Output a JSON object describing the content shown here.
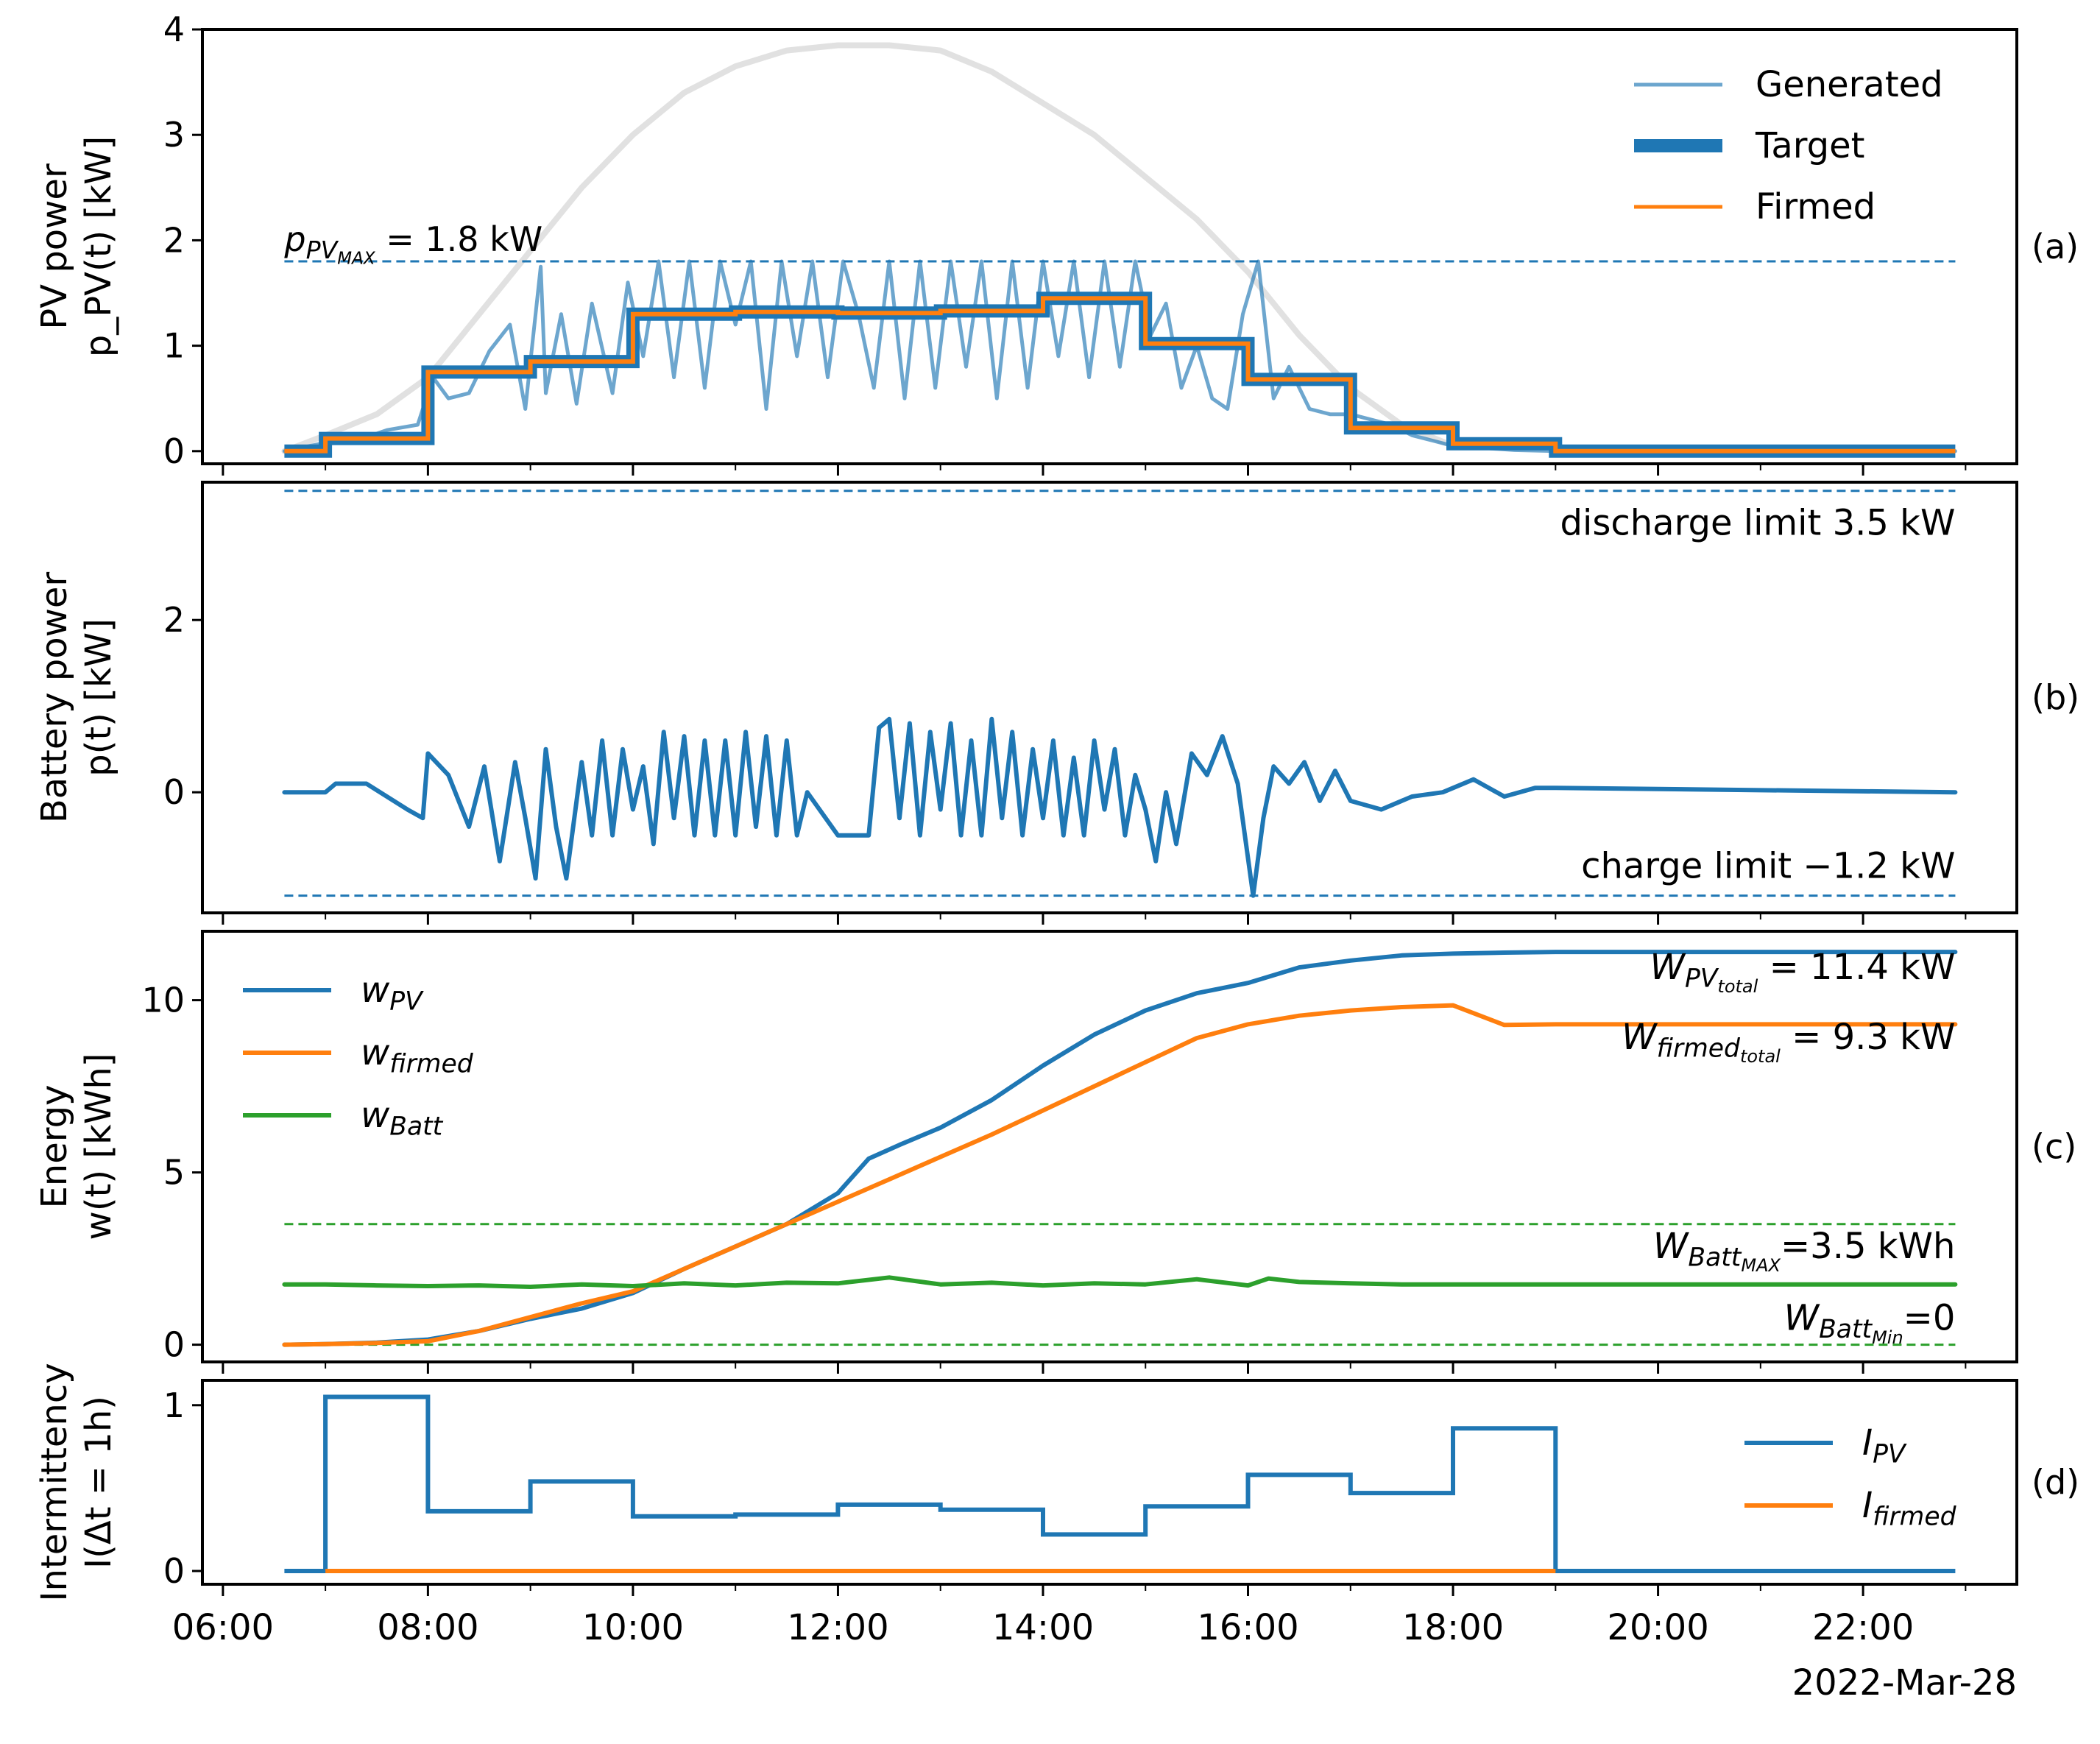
{
  "figure": {
    "date_label": "2022-Mar-28"
  },
  "colors": {
    "blue": "#1f77b4",
    "blue_light": "#1f77b4",
    "orange": "#ff7f0e",
    "green": "#2ca02c",
    "gray": "#d9d9d9"
  },
  "x_axis": {
    "range_hours": [
      5.8,
      23.5
    ],
    "ticks": [
      6,
      8,
      10,
      12,
      14,
      16,
      18,
      20,
      22
    ],
    "tick_labels": [
      "06:00",
      "08:00",
      "10:00",
      "12:00",
      "14:00",
      "16:00",
      "18:00",
      "20:00",
      "22:00"
    ],
    "minor_ticks": [
      7,
      9,
      11,
      13,
      15,
      17,
      19,
      21,
      23
    ]
  },
  "chart_data": [
    {
      "id": "a",
      "type": "line",
      "panel_label": "(a)",
      "ylabel": "PV power",
      "ylabel2": "p_PV(t) [kW]",
      "ylim": [
        -0.12,
        4.0
      ],
      "yticks": [
        0,
        1,
        2,
        3,
        4
      ],
      "ytick_labels": [
        "0",
        "1",
        "2",
        "3",
        "4"
      ],
      "hline": {
        "y": 1.8,
        "label": "= 1.8 kW",
        "label_main": "p",
        "label_sub": "PV",
        "label_subsub": "MAX"
      },
      "legend": [
        "Generated",
        "Target",
        "Firmed"
      ],
      "clear_sky_envelope_kW": {
        "x": [
          6.6,
          7.0,
          7.5,
          8.0,
          8.5,
          9.0,
          9.5,
          10.0,
          10.5,
          11.0,
          11.5,
          12.0,
          12.5,
          13.0,
          13.5,
          14.0,
          14.5,
          15.0,
          15.5,
          16.0,
          16.5,
          17.0,
          17.5,
          18.0
        ],
        "y": [
          0.0,
          0.15,
          0.35,
          0.7,
          1.3,
          1.9,
          2.5,
          3.0,
          3.4,
          3.65,
          3.8,
          3.85,
          3.85,
          3.8,
          3.6,
          3.3,
          3.0,
          2.6,
          2.2,
          1.7,
          1.1,
          0.6,
          0.25,
          0.05
        ]
      },
      "target_step": {
        "edges": [
          6.6,
          7.0,
          8.0,
          9.0,
          10.0,
          11.0,
          12.0,
          13.0,
          14.0,
          15.0,
          16.0,
          17.0,
          18.0,
          19.0,
          22.9
        ],
        "values": [
          0.0,
          0.12,
          0.75,
          0.85,
          1.3,
          1.32,
          1.31,
          1.33,
          1.45,
          1.02,
          0.68,
          0.22,
          0.07,
          0.0
        ]
      },
      "series": [
        {
          "name": "Generated",
          "style": "thin",
          "x": [
            6.6,
            7.0,
            7.3,
            7.6,
            7.9,
            8.05,
            8.2,
            8.4,
            8.6,
            8.8,
            8.95,
            9.1,
            9.15,
            9.3,
            9.45,
            9.6,
            9.8,
            9.95,
            10.1,
            10.25,
            10.4,
            10.55,
            10.7,
            10.85,
            11.0,
            11.15,
            11.3,
            11.45,
            11.6,
            11.75,
            11.9,
            12.05,
            12.2,
            12.35,
            12.5,
            12.65,
            12.8,
            12.95,
            13.1,
            13.25,
            13.4,
            13.55,
            13.7,
            13.85,
            14.0,
            14.15,
            14.3,
            14.45,
            14.6,
            14.75,
            14.9,
            15.05,
            15.2,
            15.35,
            15.5,
            15.65,
            15.8,
            15.95,
            16.1,
            16.25,
            16.4,
            16.6,
            16.8,
            17.0,
            17.2,
            17.4,
            17.6,
            17.8,
            18.0,
            18.3,
            18.6,
            19.0,
            22.9
          ],
          "y": [
            0.0,
            0.08,
            0.1,
            0.2,
            0.25,
            0.7,
            0.5,
            0.55,
            0.95,
            1.2,
            0.4,
            1.75,
            0.55,
            1.3,
            0.45,
            1.4,
            0.55,
            1.6,
            0.9,
            1.8,
            0.7,
            1.8,
            0.6,
            1.8,
            1.2,
            1.8,
            0.4,
            1.8,
            0.9,
            1.8,
            0.7,
            1.8,
            1.3,
            0.6,
            1.8,
            0.5,
            1.8,
            0.6,
            1.8,
            0.8,
            1.8,
            0.5,
            1.8,
            0.6,
            1.8,
            0.9,
            1.8,
            0.7,
            1.8,
            0.8,
            1.8,
            1.1,
            1.4,
            0.6,
            1.0,
            0.5,
            0.4,
            1.3,
            1.8,
            0.5,
            0.8,
            0.4,
            0.35,
            0.35,
            0.3,
            0.25,
            0.15,
            0.1,
            0.05,
            0.03,
            0.01,
            0.0,
            0.0
          ]
        },
        {
          "name": "Target",
          "style": "thick"
        },
        {
          "name": "Firmed",
          "style": "medium"
        }
      ]
    },
    {
      "id": "b",
      "type": "line",
      "panel_label": "(b)",
      "ylabel": "Battery power",
      "ylabel2": "p(t) [kW]",
      "ylim": [
        -1.4,
        3.6
      ],
      "yticks": [
        0,
        2
      ],
      "ytick_labels": [
        "0",
        "2"
      ],
      "discharge_limit": {
        "y": 3.5,
        "label": "discharge limit 3.5 kW"
      },
      "charge_limit": {
        "y": -1.2,
        "label": "charge limit −1.2 kW"
      },
      "series": [
        {
          "name": "Battery",
          "x": [
            6.6,
            7.0,
            7.1,
            7.4,
            7.8,
            7.95,
            8.0,
            8.2,
            8.4,
            8.55,
            8.7,
            8.85,
            8.95,
            9.05,
            9.15,
            9.25,
            9.35,
            9.5,
            9.6,
            9.7,
            9.8,
            9.9,
            10.0,
            10.1,
            10.2,
            10.3,
            10.4,
            10.5,
            10.6,
            10.7,
            10.8,
            10.9,
            11.0,
            11.1,
            11.2,
            11.3,
            11.4,
            11.5,
            11.6,
            11.7,
            12.0,
            12.3,
            12.4,
            12.5,
            12.6,
            12.7,
            12.8,
            12.9,
            13.0,
            13.1,
            13.2,
            13.3,
            13.4,
            13.5,
            13.6,
            13.7,
            13.8,
            13.9,
            14.0,
            14.1,
            14.2,
            14.3,
            14.4,
            14.5,
            14.6,
            14.7,
            14.8,
            14.9,
            15.0,
            15.1,
            15.2,
            15.3,
            15.45,
            15.6,
            15.75,
            15.9,
            16.05,
            16.15,
            16.25,
            16.4,
            16.55,
            16.7,
            16.85,
            17.0,
            17.3,
            17.6,
            17.9,
            18.2,
            18.5,
            18.8,
            19.0,
            22.9
          ],
          "y": [
            0.0,
            0.0,
            0.1,
            0.1,
            -0.2,
            -0.3,
            0.45,
            0.2,
            -0.4,
            0.3,
            -0.8,
            0.35,
            -0.3,
            -1.0,
            0.5,
            -0.4,
            -1.0,
            0.35,
            -0.5,
            0.6,
            -0.5,
            0.5,
            -0.2,
            0.3,
            -0.6,
            0.7,
            -0.3,
            0.65,
            -0.5,
            0.6,
            -0.5,
            0.6,
            -0.5,
            0.7,
            -0.4,
            0.65,
            -0.5,
            0.6,
            -0.5,
            0.0,
            -0.5,
            -0.5,
            0.75,
            0.85,
            -0.3,
            0.8,
            -0.5,
            0.7,
            -0.2,
            0.8,
            -0.5,
            0.6,
            -0.5,
            0.85,
            -0.3,
            0.7,
            -0.5,
            0.5,
            -0.3,
            0.6,
            -0.5,
            0.4,
            -0.5,
            0.6,
            -0.2,
            0.5,
            -0.5,
            0.2,
            -0.2,
            -0.8,
            0.0,
            -0.6,
            0.45,
            0.2,
            0.65,
            0.1,
            -1.2,
            -0.3,
            0.3,
            0.1,
            0.35,
            -0.1,
            0.25,
            -0.1,
            -0.2,
            -0.05,
            0.0,
            0.15,
            -0.05,
            0.05,
            0.05,
            0.0
          ]
        }
      ]
    },
    {
      "id": "c",
      "type": "line",
      "panel_label": "(c)",
      "ylabel": "Energy",
      "ylabel2": "w(t) [kWh]",
      "ylim": [
        -0.5,
        12.0
      ],
      "yticks": [
        0,
        5,
        10
      ],
      "ytick_labels": [
        "0",
        "5",
        "10"
      ],
      "batt_max": {
        "y": 3.5,
        "label_main": "W",
        "label_sub": "Batt",
        "label_subsub": "MAX",
        "label_rest": "=3.5 kWh"
      },
      "batt_min": {
        "y": 0.0,
        "label_main": "W",
        "label_sub": "Batt",
        "label_subsub": "Min",
        "label_rest": "=0"
      },
      "annot_pv_total": {
        "label_main": "W",
        "label_sub": "PV",
        "label_subsub": "total",
        "label_rest": "= 11.4 kW"
      },
      "annot_firmed_total": {
        "label_main": "W",
        "label_sub": "firmed",
        "label_subsub": "total",
        "label_rest": "= 9.3 kW"
      },
      "legend": [
        {
          "main": "w",
          "sub": "PV"
        },
        {
          "main": "w",
          "sub": "firmed"
        },
        {
          "main": "w",
          "sub": "Batt"
        }
      ],
      "series": [
        {
          "name": "w_PV",
          "x": [
            6.6,
            7.0,
            7.5,
            8.0,
            8.5,
            9.0,
            9.5,
            10.0,
            10.5,
            11.0,
            11.5,
            12.0,
            12.3,
            12.6,
            13.0,
            13.5,
            14.0,
            14.5,
            15.0,
            15.5,
            16.0,
            16.5,
            17.0,
            17.5,
            18.0,
            18.5,
            19.0,
            20.0,
            22.9
          ],
          "y": [
            0.0,
            0.02,
            0.06,
            0.15,
            0.4,
            0.75,
            1.05,
            1.5,
            2.2,
            2.85,
            3.5,
            4.4,
            5.4,
            5.8,
            6.3,
            7.1,
            8.1,
            9.0,
            9.7,
            10.2,
            10.5,
            10.95,
            11.15,
            11.3,
            11.35,
            11.38,
            11.4,
            11.4,
            11.4
          ]
        },
        {
          "name": "w_firmed",
          "x": [
            6.6,
            7.0,
            7.5,
            8.0,
            8.5,
            9.0,
            9.5,
            10.0,
            10.5,
            11.0,
            11.5,
            12.0,
            12.5,
            13.0,
            13.5,
            14.0,
            14.5,
            15.0,
            15.5,
            16.0,
            16.5,
            17.0,
            17.5,
            18.0,
            18.5,
            19.0,
            20.0,
            22.9
          ],
          "y": [
            0.0,
            0.02,
            0.05,
            0.1,
            0.4,
            0.8,
            1.2,
            1.55,
            2.2,
            2.85,
            3.5,
            4.15,
            4.8,
            5.45,
            6.1,
            6.8,
            7.5,
            8.2,
            8.9,
            9.3,
            9.55,
            9.7,
            9.8,
            9.85,
            9.28,
            9.3,
            9.3,
            9.3
          ]
        },
        {
          "name": "w_Batt",
          "x": [
            6.6,
            7.0,
            7.5,
            8.0,
            8.5,
            9.0,
            9.5,
            10.0,
            10.5,
            11.0,
            11.5,
            12.0,
            12.5,
            13.0,
            13.5,
            14.0,
            14.5,
            15.0,
            15.5,
            16.0,
            16.2,
            16.5,
            17.0,
            17.5,
            18.0,
            19.0,
            22.9
          ],
          "y": [
            1.75,
            1.75,
            1.72,
            1.7,
            1.72,
            1.68,
            1.75,
            1.7,
            1.78,
            1.72,
            1.8,
            1.78,
            1.95,
            1.75,
            1.8,
            1.72,
            1.78,
            1.75,
            1.9,
            1.72,
            1.92,
            1.82,
            1.78,
            1.75,
            1.75,
            1.75,
            1.75
          ]
        }
      ]
    },
    {
      "id": "d",
      "type": "line",
      "panel_label": "(d)",
      "ylabel": "Intermittency",
      "ylabel2": "I(Δt = 1h)",
      "ylim": [
        -0.08,
        1.15
      ],
      "yticks": [
        0,
        1
      ],
      "ytick_labels": [
        "0",
        "1"
      ],
      "legend": [
        {
          "main": "I",
          "sub": "PV"
        },
        {
          "main": "I",
          "sub": "firmed"
        }
      ],
      "series": [
        {
          "name": "I_PV",
          "edges": [
            6.6,
            7.0,
            8.0,
            9.0,
            10.0,
            11.0,
            12.0,
            13.0,
            14.0,
            15.0,
            16.0,
            17.0,
            18.0,
            19.0,
            22.9
          ],
          "values": [
            0.0,
            1.05,
            0.36,
            0.54,
            0.33,
            0.34,
            0.4,
            0.37,
            0.22,
            0.39,
            0.58,
            0.47,
            0.86,
            0.0
          ]
        },
        {
          "name": "I_firmed",
          "edges": [
            7.0,
            19.0
          ],
          "values": [
            0.0
          ]
        }
      ]
    }
  ]
}
